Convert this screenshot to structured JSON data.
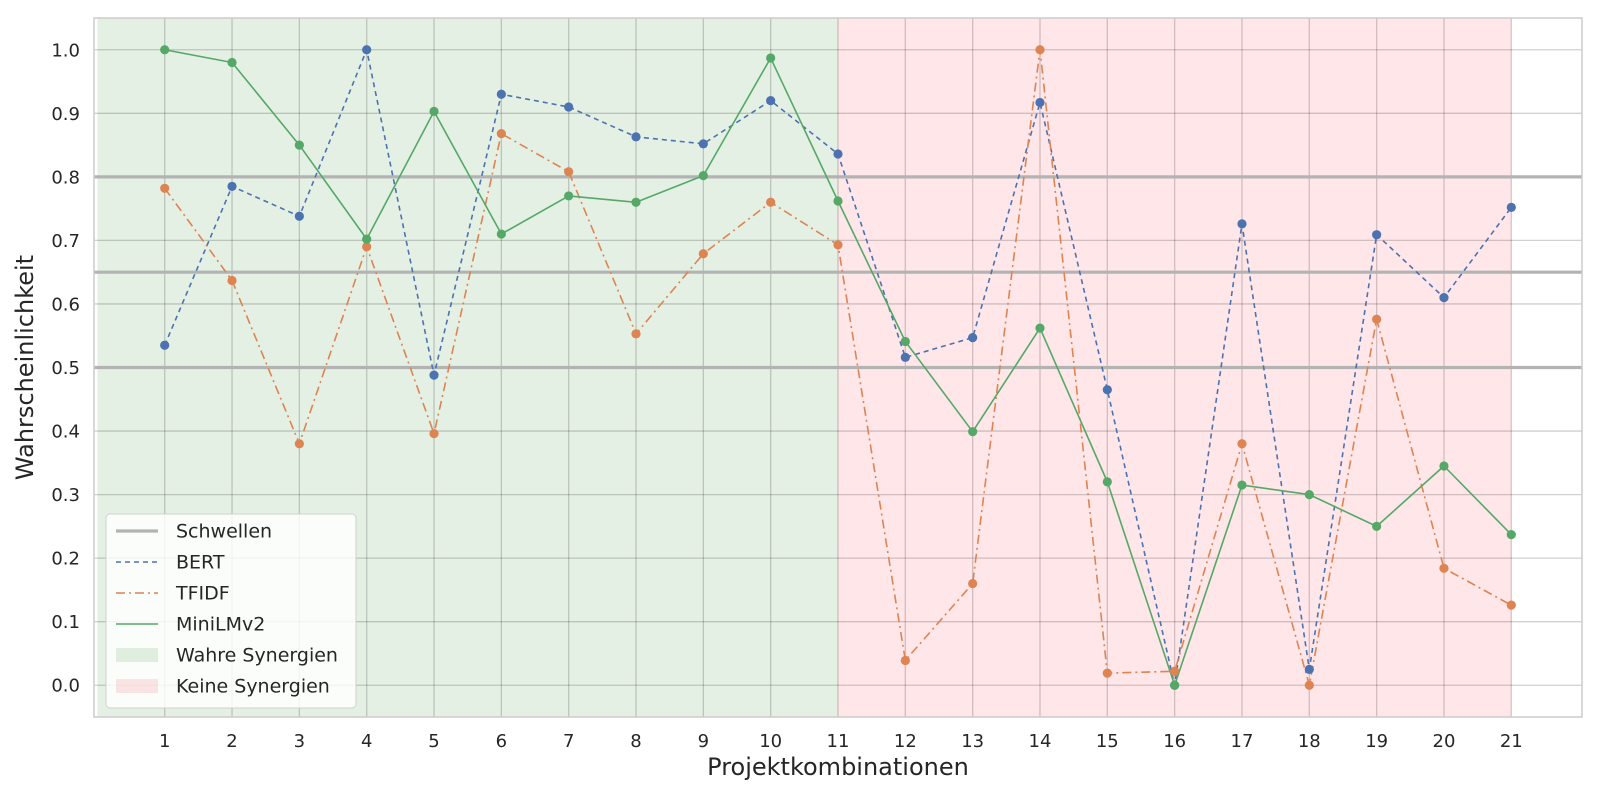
{
  "chart_data": {
    "type": "line",
    "xlabel": "Projektkombinationen",
    "ylabel": "Wahrscheinlichkeit",
    "x": [
      1,
      2,
      3,
      4,
      5,
      6,
      7,
      8,
      9,
      10,
      11,
      12,
      13,
      14,
      15,
      16,
      17,
      18,
      19,
      20,
      21
    ],
    "xlim": [
      -0.05,
      22.05
    ],
    "ylim": [
      -0.05,
      1.05
    ],
    "yticks": [
      "0.0",
      "0.1",
      "0.2",
      "0.3",
      "0.4",
      "0.5",
      "0.6",
      "0.7",
      "0.8",
      "0.9",
      "1.0"
    ],
    "grid": true,
    "thresholds": [
      0.5,
      0.65,
      0.8
    ],
    "regions": [
      {
        "label": "Wahre Synergien",
        "x_range": [
          0,
          11
        ],
        "color": "#2e8b2e"
      },
      {
        "label": "Keine Synergien",
        "x_range": [
          11,
          21
        ],
        "color": "#ff3b4f"
      }
    ],
    "series": [
      {
        "name": "BERT",
        "color": "#4c72b0",
        "linestyle": "dashed",
        "values": [
          0.535,
          0.785,
          0.738,
          1.0,
          0.488,
          0.93,
          0.91,
          0.863,
          0.852,
          0.92,
          0.836,
          0.516,
          0.547,
          0.917,
          0.465,
          0.0,
          0.726,
          0.025,
          0.709,
          0.61,
          0.752
        ]
      },
      {
        "name": "TFIDF",
        "color": "#dd8452",
        "linestyle": "dashdot",
        "values": [
          0.782,
          0.637,
          0.38,
          0.69,
          0.396,
          0.868,
          0.808,
          0.553,
          0.679,
          0.76,
          0.693,
          0.039,
          0.16,
          1.0,
          0.019,
          0.022,
          0.38,
          0.0,
          0.576,
          0.184,
          0.126
        ]
      },
      {
        "name": "MiniLMv2",
        "color": "#55a868",
        "linestyle": "solid",
        "values": [
          1.0,
          0.98,
          0.85,
          0.702,
          0.903,
          0.71,
          0.77,
          0.76,
          0.802,
          0.987,
          0.762,
          0.541,
          0.399,
          0.562,
          0.32,
          0.0,
          0.315,
          0.3,
          0.25,
          0.345,
          0.237
        ]
      }
    ],
    "legend": {
      "position": "lower-left",
      "entries": [
        "Schwellen",
        "BERT",
        "TFIDF",
        "MiniLMv2",
        "Wahre Synergien",
        "Keine Synergien"
      ],
      "threshold_color": "#b3b3b3"
    }
  }
}
